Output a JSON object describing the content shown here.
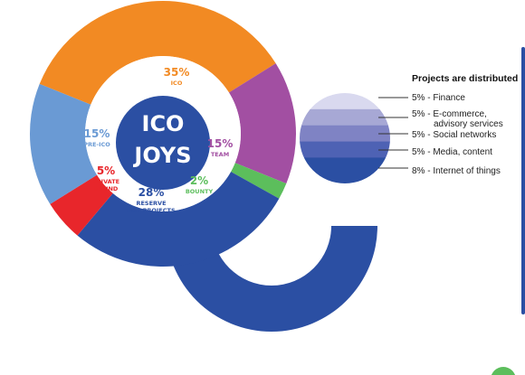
{
  "chart_data": [
    {
      "type": "pie",
      "title": "ICO JOYS",
      "title_lines": [
        "ICO",
        "JOYS"
      ],
      "slices": [
        {
          "value": 35,
          "pct_label": "35%",
          "name_lines": [
            "ICO"
          ],
          "color": "#F28A23"
        },
        {
          "value": 15,
          "pct_label": "15%",
          "name_lines": [
            "TEAM"
          ],
          "color": "#A24FA2"
        },
        {
          "value": 2,
          "pct_label": "2%",
          "name_lines": [
            "BOUNTY"
          ],
          "color": "#5CBE5C"
        },
        {
          "value": 28,
          "pct_label": "28%",
          "name_lines": [
            "RESERVE",
            "FOR PROJECTS"
          ],
          "color": "#2B4FA3"
        },
        {
          "value": 5,
          "pct_label": "5%",
          "name_lines": [
            "PRIVATE",
            "ROUND"
          ],
          "color": "#E8262B"
        },
        {
          "value": 15,
          "pct_label": "15%",
          "name_lines": [
            "PRE-ICO"
          ],
          "color": "#6A9AD4"
        }
      ]
    },
    {
      "type": "bar",
      "orientation": "stacked-horizontal-bands",
      "title": "Projects are distributed",
      "series": [
        {
          "name": "Finance",
          "label": "5% - Finance",
          "value": 5,
          "color": "#D9D9EF"
        },
        {
          "name": "E-commerce, advisory services",
          "label_lines": [
            "5% - E-commerce,",
            "advisory services"
          ],
          "value": 5,
          "color": "#A7A8D5"
        },
        {
          "name": "Social networks",
          "label": "5% - Social networks",
          "value": 5,
          "color": "#7F83C4"
        },
        {
          "name": "Media, content",
          "label": "5% - Media, content",
          "value": 5,
          "color": "#4E62B4"
        },
        {
          "name": "Internet of things",
          "label": "8% - Internet of things",
          "value": 8,
          "color": "#2B4FA3"
        }
      ]
    }
  ],
  "colors": {
    "reserve": "#2B4FA3",
    "panel_border": "#2B4FA3",
    "green_dot": "#5CBE5C",
    "leader_line": "#333333"
  }
}
